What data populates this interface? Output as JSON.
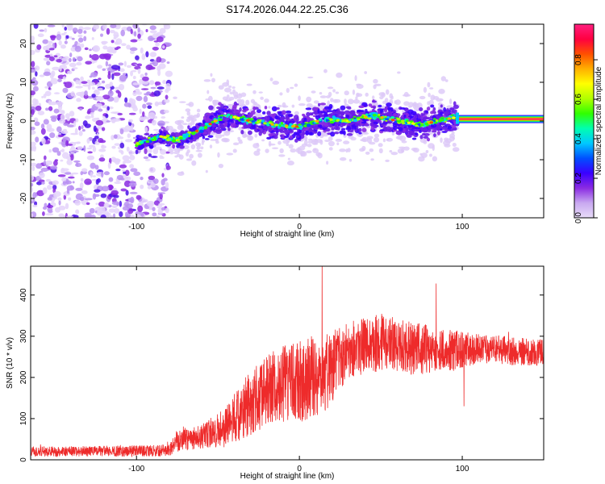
{
  "title": "S174.2026.044.22.25.C36",
  "chart_data": [
    {
      "type": "heatmap",
      "name": "spectrogram",
      "xlabel": "Height of straight line (km)",
      "ylabel": "Frequency (Hz)",
      "xlim": [
        -165,
        150
      ],
      "ylim": [
        -25,
        25
      ],
      "xticks": [
        -100,
        0,
        100
      ],
      "yticks": [
        -20,
        -10,
        0,
        10,
        20
      ],
      "description_series": {
        "signal_start_km": -100,
        "noise_region_end_km": -80,
        "line_section_start_km": 97,
        "line_frequency_hz": 0.5
      },
      "ridge_center_hz": [
        {
          "x": -100,
          "y": -6
        },
        {
          "x": -85,
          "y": -4
        },
        {
          "x": -75,
          "y": -5
        },
        {
          "x": -60,
          "y": -2
        },
        {
          "x": -45,
          "y": 1.5
        },
        {
          "x": -30,
          "y": 0
        },
        {
          "x": -15,
          "y": -1
        },
        {
          "x": 0,
          "y": -1.5
        },
        {
          "x": 15,
          "y": 0.5
        },
        {
          "x": 30,
          "y": 0
        },
        {
          "x": 45,
          "y": 1.5
        },
        {
          "x": 60,
          "y": 0
        },
        {
          "x": 75,
          "y": -1
        },
        {
          "x": 90,
          "y": 0.5
        },
        {
          "x": 97,
          "y": 1
        },
        {
          "x": 150,
          "y": 1
        }
      ]
    },
    {
      "type": "line",
      "name": "snr",
      "xlabel": "Height of straight line (km)",
      "ylabel": "SNR (10 * v/v)",
      "xlim": [
        -165,
        150
      ],
      "ylim": [
        0,
        470
      ],
      "xticks": [
        -100,
        0,
        100
      ],
      "yticks": [
        0,
        100,
        200,
        300,
        400
      ],
      "series": [
        {
          "name": "SNR",
          "color": "#ee2b2b",
          "envelope": [
            {
              "x": -165,
              "mean": 20,
              "spread": 12
            },
            {
              "x": -80,
              "mean": 22,
              "spread": 14
            },
            {
              "x": -75,
              "mean": 50,
              "spread": 30
            },
            {
              "x": -60,
              "mean": 55,
              "spread": 30
            },
            {
              "x": -45,
              "mean": 80,
              "spread": 50
            },
            {
              "x": -30,
              "mean": 140,
              "spread": 80
            },
            {
              "x": -15,
              "mean": 180,
              "spread": 90
            },
            {
              "x": 0,
              "mean": 190,
              "spread": 100
            },
            {
              "x": 15,
              "mean": 210,
              "spread": 100
            },
            {
              "x": 30,
              "mean": 270,
              "spread": 70
            },
            {
              "x": 50,
              "mean": 285,
              "spread": 70
            },
            {
              "x": 70,
              "mean": 270,
              "spread": 65
            },
            {
              "x": 95,
              "mean": 265,
              "spread": 50
            },
            {
              "x": 110,
              "mean": 270,
              "spread": 35
            },
            {
              "x": 150,
              "mean": 260,
              "spread": 35
            }
          ],
          "peaks": [
            {
              "x": 14,
              "y": 470
            },
            {
              "x": 84,
              "y": 428
            },
            {
              "x": 101,
              "y": 130
            }
          ]
        }
      ]
    }
  ],
  "colorbar": {
    "label": "Normalized spectral amplitude",
    "ticks": [
      "0.0",
      "0.2",
      "0.4",
      "0.6",
      "0.8"
    ],
    "stops": [
      "#e8dcf8",
      "#c8a8f0",
      "#8a2be2",
      "#3a00ff",
      "#0050ff",
      "#00c8ff",
      "#00ffb0",
      "#30ff00",
      "#b0ff00",
      "#ffff00",
      "#ffb000",
      "#ff5000",
      "#ff0040",
      "#ff2080"
    ]
  }
}
